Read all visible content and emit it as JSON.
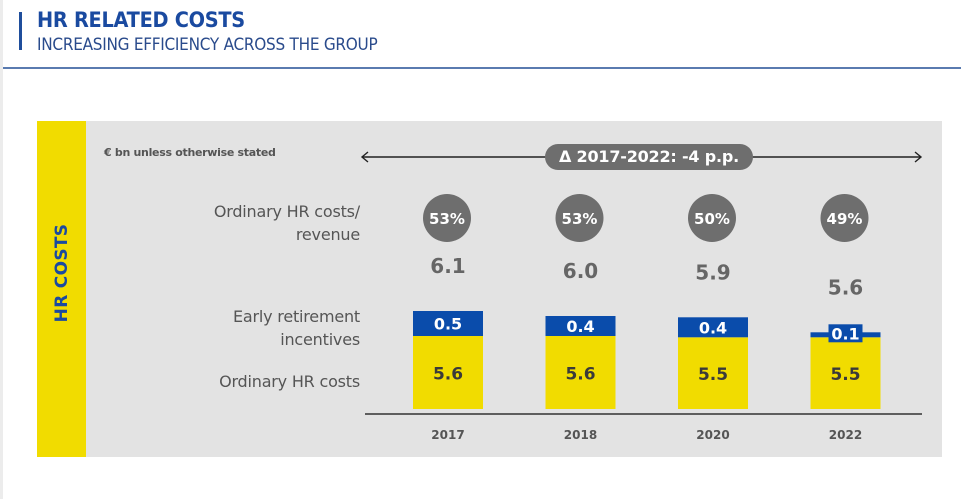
{
  "header": {
    "title": "HR RELATED COSTS",
    "subtitle": "INCREASING EFFICIENCY ACROSS THE GROUP"
  },
  "panel": {
    "side_label": "HR COSTS",
    "unit_note": "€ bn unless otherwise stated",
    "delta_label": "Δ 2017-2022: -4 p.p.",
    "row_labels": {
      "ratio_line1": "Ordinary HR costs/",
      "ratio_line2": "revenue",
      "early_line1": "Early retirement",
      "early_line2": "incentives",
      "ordinary": "Ordinary HR costs"
    }
  },
  "colors": {
    "ordinary": "#f1dc00",
    "early": "#0a4cab",
    "circle": "#6e6e6e",
    "panel": "#e3e3e3",
    "accent": "#1a4aa0"
  },
  "chart_data": {
    "type": "bar",
    "stacked": true,
    "title": "HR RELATED COSTS",
    "subtitle": "INCREASING EFFICIENCY ACROSS THE GROUP",
    "unit": "€ bn unless otherwise stated",
    "categories": [
      "2017",
      "2018",
      "2020",
      "2022"
    ],
    "series": [
      {
        "name": "Ordinary HR costs",
        "values": [
          5.6,
          5.6,
          5.5,
          5.5
        ],
        "labels": [
          "5.6",
          "5.6",
          "5.5",
          "5.5"
        ]
      },
      {
        "name": "Early retirement incentives",
        "values": [
          0.5,
          0.4,
          0.4,
          0.1
        ],
        "labels": [
          "0.5",
          "0.4",
          "0.4",
          "0.1"
        ]
      }
    ],
    "totals": [
      6.1,
      6.0,
      5.9,
      5.6
    ],
    "total_labels": [
      "6.1",
      "6.0",
      "5.9",
      "5.6"
    ],
    "ratio_name": "Ordinary HR costs/revenue",
    "ratio_labels": [
      "53%",
      "53%",
      "50%",
      "49%"
    ],
    "ratio_values_pct": [
      53,
      53,
      50,
      49
    ],
    "annotation": "Δ 2017-2022: -4 p.p.",
    "xlabel": "",
    "ylabel": "",
    "grid": false,
    "legend": "row labels on left"
  }
}
